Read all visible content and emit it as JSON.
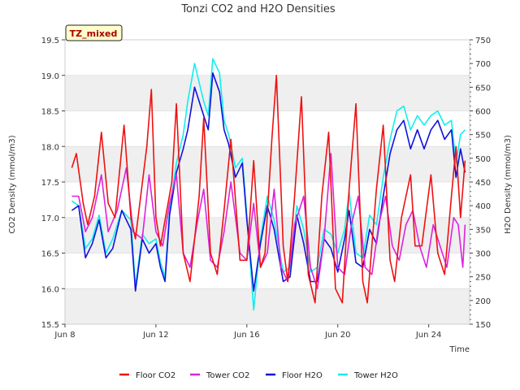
{
  "chart_data": {
    "type": "line",
    "title": "Tonzi CO2 and H2O Densities",
    "site_label": "TZ_mixed",
    "xlabel": "Time",
    "ylabel_left": "CO2 Density (mmol/m3)",
    "ylabel_right": "H2O Density (mmol/m3)",
    "x_range_days": [
      8,
      25.8
    ],
    "x_ticks": [
      {
        "day": 8,
        "label": "Jun 8"
      },
      {
        "day": 12,
        "label": "Jun 12"
      },
      {
        "day": 16,
        "label": "Jun 16"
      },
      {
        "day": 20,
        "label": "Jun 20"
      },
      {
        "day": 24,
        "label": "Jun 24"
      }
    ],
    "ylim_left": [
      15.5,
      19.5
    ],
    "yticks_left": [
      "15.5",
      "16.0",
      "16.5",
      "17.0",
      "17.5",
      "18.0",
      "18.5",
      "19.0",
      "19.5"
    ],
    "ylim_right": [
      150,
      750
    ],
    "yticks_right": [
      "150",
      "200",
      "250",
      "300",
      "350",
      "400",
      "450",
      "500",
      "550",
      "600",
      "650",
      "700",
      "750"
    ],
    "grid_bands": true,
    "legend_position": "bottom",
    "series": [
      {
        "name": "Floor CO2",
        "axis": "left",
        "color": "#ee1111",
        "points": [
          [
            8.3,
            17.7
          ],
          [
            8.5,
            17.9
          ],
          [
            8.8,
            17.2
          ],
          [
            9.0,
            16.9
          ],
          [
            9.3,
            17.3
          ],
          [
            9.6,
            18.2
          ],
          [
            9.9,
            17.2
          ],
          [
            10.2,
            17.0
          ],
          [
            10.6,
            18.3
          ],
          [
            10.9,
            17.0
          ],
          [
            11.1,
            16.7
          ],
          [
            11.6,
            18.0
          ],
          [
            11.8,
            18.8
          ],
          [
            12.0,
            17.0
          ],
          [
            12.2,
            16.6
          ],
          [
            12.7,
            17.5
          ],
          [
            12.9,
            18.6
          ],
          [
            13.2,
            16.5
          ],
          [
            13.5,
            16.1
          ],
          [
            13.9,
            17.3
          ],
          [
            14.1,
            18.4
          ],
          [
            14.4,
            16.5
          ],
          [
            14.7,
            16.2
          ],
          [
            15.0,
            17.1
          ],
          [
            15.3,
            18.1
          ],
          [
            15.7,
            16.4
          ],
          [
            16.0,
            16.4
          ],
          [
            16.3,
            17.8
          ],
          [
            16.6,
            16.3
          ],
          [
            16.8,
            16.5
          ],
          [
            17.1,
            18.1
          ],
          [
            17.3,
            19.0
          ],
          [
            17.6,
            16.6
          ],
          [
            17.8,
            16.1
          ],
          [
            18.1,
            17.3
          ],
          [
            18.4,
            18.7
          ],
          [
            18.7,
            16.2
          ],
          [
            19.0,
            15.8
          ],
          [
            19.3,
            17.3
          ],
          [
            19.6,
            18.2
          ],
          [
            19.9,
            16.0
          ],
          [
            20.2,
            15.8
          ],
          [
            20.5,
            17.4
          ],
          [
            20.8,
            18.6
          ],
          [
            21.1,
            16.1
          ],
          [
            21.3,
            15.8
          ],
          [
            21.7,
            17.4
          ],
          [
            22.0,
            18.3
          ],
          [
            22.3,
            16.4
          ],
          [
            22.5,
            16.1
          ],
          [
            22.8,
            17.0
          ],
          [
            23.2,
            17.6
          ],
          [
            23.4,
            16.6
          ],
          [
            23.7,
            16.6
          ],
          [
            24.1,
            17.6
          ],
          [
            24.4,
            16.5
          ],
          [
            24.7,
            16.2
          ],
          [
            25.0,
            17.3
          ],
          [
            25.2,
            18.0
          ],
          [
            25.4,
            17.0
          ],
          [
            25.6,
            17.8
          ]
        ]
      },
      {
        "name": "Tower CO2",
        "axis": "left",
        "color": "#dd22dd",
        "points": [
          [
            8.3,
            17.3
          ],
          [
            8.6,
            17.3
          ],
          [
            8.9,
            16.8
          ],
          [
            9.2,
            17.0
          ],
          [
            9.6,
            17.6
          ],
          [
            9.9,
            16.8
          ],
          [
            10.3,
            17.1
          ],
          [
            10.7,
            17.7
          ],
          [
            11.0,
            16.8
          ],
          [
            11.4,
            16.7
          ],
          [
            11.7,
            17.6
          ],
          [
            12.0,
            16.8
          ],
          [
            12.3,
            16.6
          ],
          [
            12.6,
            17.2
          ],
          [
            12.9,
            17.6
          ],
          [
            13.2,
            16.5
          ],
          [
            13.5,
            16.3
          ],
          [
            13.8,
            16.9
          ],
          [
            14.1,
            17.4
          ],
          [
            14.4,
            16.4
          ],
          [
            14.7,
            16.3
          ],
          [
            15.0,
            16.8
          ],
          [
            15.3,
            17.5
          ],
          [
            15.7,
            16.5
          ],
          [
            16.0,
            16.4
          ],
          [
            16.3,
            17.2
          ],
          [
            16.6,
            16.3
          ],
          [
            16.9,
            16.5
          ],
          [
            17.2,
            17.4
          ],
          [
            17.5,
            16.3
          ],
          [
            17.8,
            16.1
          ],
          [
            18.1,
            16.9
          ],
          [
            18.5,
            17.3
          ],
          [
            18.8,
            16.3
          ],
          [
            19.1,
            16.0
          ],
          [
            19.4,
            16.7
          ],
          [
            19.7,
            17.9
          ],
          [
            20.0,
            16.3
          ],
          [
            20.3,
            16.2
          ],
          [
            20.6,
            16.9
          ],
          [
            20.9,
            17.3
          ],
          [
            21.2,
            16.3
          ],
          [
            21.5,
            16.2
          ],
          [
            21.8,
            16.9
          ],
          [
            22.1,
            17.3
          ],
          [
            22.4,
            16.6
          ],
          [
            22.7,
            16.4
          ],
          [
            23.0,
            16.9
          ],
          [
            23.3,
            17.1
          ],
          [
            23.6,
            16.6
          ],
          [
            23.9,
            16.3
          ],
          [
            24.2,
            16.9
          ],
          [
            24.5,
            16.6
          ],
          [
            24.8,
            16.3
          ],
          [
            25.1,
            17.0
          ],
          [
            25.3,
            16.9
          ],
          [
            25.5,
            16.3
          ],
          [
            25.6,
            16.9
          ]
        ]
      },
      {
        "name": "Floor H2O",
        "axis": "right",
        "color": "#1111dd",
        "points": [
          [
            8.3,
            390
          ],
          [
            8.6,
            400
          ],
          [
            8.9,
            290
          ],
          [
            9.2,
            320
          ],
          [
            9.5,
            370
          ],
          [
            9.8,
            290
          ],
          [
            10.1,
            310
          ],
          [
            10.5,
            390
          ],
          [
            10.9,
            350
          ],
          [
            11.1,
            220
          ],
          [
            11.4,
            330
          ],
          [
            11.7,
            300
          ],
          [
            12.0,
            320
          ],
          [
            12.2,
            270
          ],
          [
            12.4,
            240
          ],
          [
            12.6,
            380
          ],
          [
            12.9,
            470
          ],
          [
            13.2,
            520
          ],
          [
            13.4,
            560
          ],
          [
            13.7,
            650
          ],
          [
            13.9,
            620
          ],
          [
            14.1,
            590
          ],
          [
            14.3,
            560
          ],
          [
            14.5,
            680
          ],
          [
            14.8,
            640
          ],
          [
            15.0,
            560
          ],
          [
            15.2,
            530
          ],
          [
            15.5,
            460
          ],
          [
            15.8,
            490
          ],
          [
            16.0,
            370
          ],
          [
            16.3,
            220
          ],
          [
            16.6,
            320
          ],
          [
            16.9,
            400
          ],
          [
            17.2,
            350
          ],
          [
            17.6,
            240
          ],
          [
            17.9,
            250
          ],
          [
            18.2,
            380
          ],
          [
            18.5,
            320
          ],
          [
            18.8,
            240
          ],
          [
            19.1,
            240
          ],
          [
            19.4,
            330
          ],
          [
            19.7,
            310
          ],
          [
            20.0,
            260
          ],
          [
            20.3,
            330
          ],
          [
            20.5,
            390
          ],
          [
            20.8,
            280
          ],
          [
            21.1,
            270
          ],
          [
            21.4,
            350
          ],
          [
            21.7,
            320
          ],
          [
            22.0,
            420
          ],
          [
            22.3,
            510
          ],
          [
            22.6,
            560
          ],
          [
            22.9,
            580
          ],
          [
            23.2,
            520
          ],
          [
            23.5,
            560
          ],
          [
            23.8,
            520
          ],
          [
            24.1,
            560
          ],
          [
            24.4,
            580
          ],
          [
            24.7,
            540
          ],
          [
            25.0,
            560
          ],
          [
            25.2,
            460
          ],
          [
            25.4,
            520
          ],
          [
            25.6,
            470
          ]
        ]
      },
      {
        "name": "Tower H2O",
        "axis": "right",
        "color": "#11eeee",
        "points": [
          [
            8.3,
            410
          ],
          [
            8.6,
            400
          ],
          [
            8.9,
            310
          ],
          [
            9.2,
            330
          ],
          [
            9.5,
            380
          ],
          [
            9.8,
            300
          ],
          [
            10.1,
            330
          ],
          [
            10.5,
            390
          ],
          [
            10.9,
            370
          ],
          [
            11.1,
            230
          ],
          [
            11.4,
            340
          ],
          [
            11.7,
            320
          ],
          [
            12.0,
            330
          ],
          [
            12.2,
            280
          ],
          [
            12.4,
            250
          ],
          [
            12.6,
            390
          ],
          [
            12.9,
            490
          ],
          [
            13.2,
            550
          ],
          [
            13.4,
            620
          ],
          [
            13.7,
            700
          ],
          [
            13.9,
            660
          ],
          [
            14.1,
            620
          ],
          [
            14.3,
            590
          ],
          [
            14.5,
            710
          ],
          [
            14.8,
            680
          ],
          [
            15.0,
            580
          ],
          [
            15.2,
            550
          ],
          [
            15.5,
            480
          ],
          [
            15.8,
            500
          ],
          [
            16.0,
            380
          ],
          [
            16.3,
            180
          ],
          [
            16.6,
            330
          ],
          [
            16.9,
            420
          ],
          [
            17.2,
            370
          ],
          [
            17.6,
            260
          ],
          [
            17.9,
            270
          ],
          [
            18.2,
            400
          ],
          [
            18.5,
            350
          ],
          [
            18.8,
            260
          ],
          [
            19.1,
            270
          ],
          [
            19.4,
            350
          ],
          [
            19.7,
            340
          ],
          [
            20.0,
            300
          ],
          [
            20.3,
            350
          ],
          [
            20.5,
            430
          ],
          [
            20.8,
            300
          ],
          [
            21.1,
            290
          ],
          [
            21.4,
            380
          ],
          [
            21.7,
            360
          ],
          [
            22.0,
            460
          ],
          [
            22.3,
            540
          ],
          [
            22.6,
            600
          ],
          [
            22.9,
            610
          ],
          [
            23.2,
            560
          ],
          [
            23.5,
            590
          ],
          [
            23.8,
            570
          ],
          [
            24.1,
            590
          ],
          [
            24.4,
            600
          ],
          [
            24.7,
            570
          ],
          [
            25.0,
            580
          ],
          [
            25.2,
            490
          ],
          [
            25.4,
            550
          ],
          [
            25.6,
            560
          ]
        ]
      }
    ]
  }
}
